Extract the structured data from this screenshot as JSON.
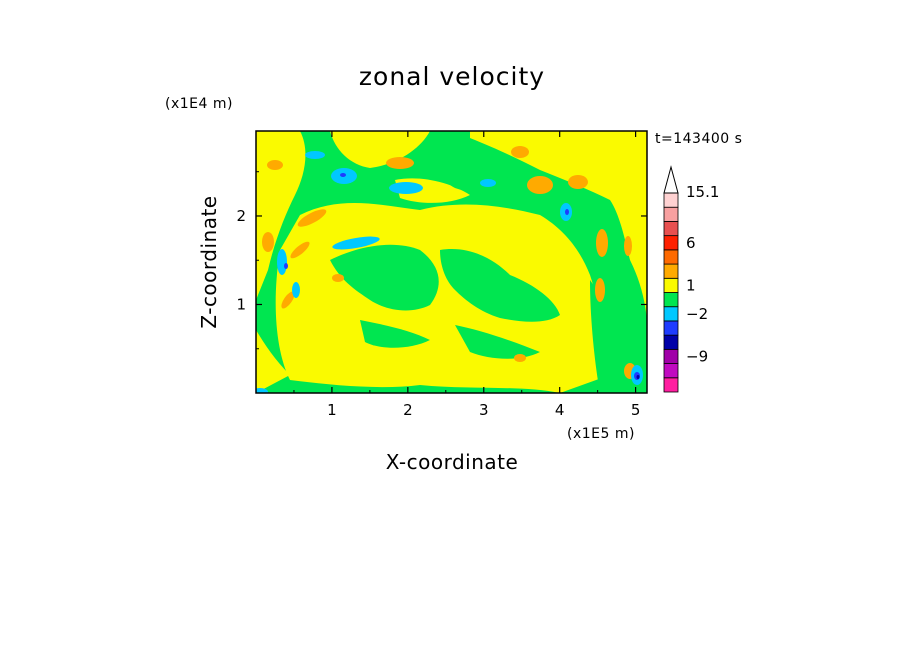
{
  "chart_data": {
    "type": "heatmap",
    "title": "zonal velocity",
    "xlabel": "X-coordinate",
    "ylabel": "Z-coordinate",
    "x_multiplier": "(x1E5 m)",
    "y_multiplier": "(x1E4 m)",
    "time_label": "t=143400 s",
    "xlim": [
      0,
      5.15
    ],
    "ylim": [
      0,
      2.96
    ],
    "x_ticks": [
      "1",
      "2",
      "3",
      "4",
      "5"
    ],
    "y_ticks": [
      "1",
      "2"
    ],
    "x_tick_values": [
      1,
      2,
      3,
      4,
      5
    ],
    "y_tick_values": [
      1,
      2
    ],
    "colorbar": {
      "labels": [
        "15.1",
        "6",
        "1",
        "-2",
        "-9"
      ],
      "bins": [
        {
          "color": "#ff1ea0",
          "value": -15
        },
        {
          "color": "#c00ac0",
          "value": -12
        },
        {
          "color": "#a000a8",
          "value": -9
        },
        {
          "color": "#0000a8",
          "value": -6
        },
        {
          "color": "#1e3cff",
          "value": -4
        },
        {
          "color": "#00c8ff",
          "value": -2
        },
        {
          "color": "#00e650",
          "value": 0
        },
        {
          "color": "#fafa00",
          "value": 1
        },
        {
          "color": "#ffaa00",
          "value": 2
        },
        {
          "color": "#ff6a00",
          "value": 4
        },
        {
          "color": "#ff2000",
          "value": 6
        },
        {
          "color": "#e85050",
          "value": 9
        },
        {
          "color": "#f8a0a0",
          "value": 12
        },
        {
          "color": "#ffd2d2",
          "value": 15.1
        }
      ]
    },
    "colors": {
      "green": "#00e650",
      "yellow": "#fafa00",
      "orange": "#ffaa00",
      "cyan": "#00c8ff",
      "blue": "#1e3cff",
      "navy": "#0000a8"
    }
  }
}
